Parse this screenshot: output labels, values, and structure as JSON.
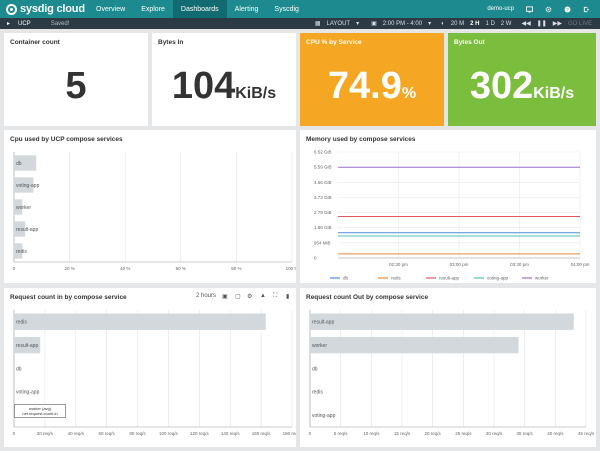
{
  "nav": {
    "brand": "sysdig cloud",
    "items": [
      "Overview",
      "Explore",
      "Dashboards",
      "Alerting",
      "Syscdig"
    ],
    "active": "Dashboards",
    "user": "demo-ucp"
  },
  "subbar": {
    "dashboard": "UCP",
    "status": "Saved!",
    "layout": "LAYOUT",
    "time": "2:00 PM - 4:00",
    "ranges": [
      "20 M",
      "2 H",
      "1 D",
      "2 W"
    ],
    "active_range": "2 H",
    "golive": "GO LIVE"
  },
  "panels": {
    "container": {
      "title": "Container count",
      "value": "5",
      "unit": ""
    },
    "bytes_in": {
      "title": "Bytes In",
      "value": "104",
      "unit": "KiB/s"
    },
    "cpu": {
      "title": "CPU % by Service",
      "value": "74.9",
      "unit": "%",
      "color": "#f5a623"
    },
    "bytes_out": {
      "title": "Bytes Out",
      "value": "302",
      "unit": "KiB/s",
      "color": "#7bbd3c"
    },
    "cpu_chart": {
      "title": "Cpu used by UCP compose services"
    },
    "mem_chart": {
      "title": "Memory used by compose services"
    },
    "req_in": {
      "title": "Request count in by compose service",
      "range": "2 hours",
      "tooltip": {
        "series": "worker (avg)",
        "metric": "net.request.count.in"
      }
    },
    "req_out": {
      "title": "Request count Out by compose service"
    }
  },
  "chart_data": [
    {
      "type": "bar",
      "title": "Cpu used by UCP compose services",
      "categories": [
        "db",
        "voting-app",
        "worker",
        "result-app",
        "redis"
      ],
      "values": [
        8,
        7,
        3,
        4,
        3
      ],
      "xticks": [
        "0",
        "20 %",
        "40 %",
        "60 %",
        "80 %",
        "100 %"
      ],
      "xlim": [
        0,
        100
      ],
      "color": "#d2d8dc"
    },
    {
      "type": "line",
      "title": "Memory used by compose services",
      "yticks": [
        "6.52 GiB",
        "5.59 GiB",
        "4.66 GiB",
        "3.73 GiB",
        "2.79 GiB",
        "1.86 GiB",
        "954 MiB",
        "0"
      ],
      "xticks": [
        "02:30 pm",
        "03:00 pm",
        "03:30 pm",
        "04:00 pm"
      ],
      "ylim": [
        0,
        6.52
      ],
      "series": [
        {
          "name": "db",
          "values": [
            1.55,
            1.55
          ],
          "color": "#4e8fd6"
        },
        {
          "name": "redis",
          "values": [
            0.25,
            0.25
          ],
          "color": "#e8883a"
        },
        {
          "name": "result-app",
          "values": [
            2.55,
            2.55
          ],
          "color": "#e05a5a"
        },
        {
          "name": "voting-app",
          "values": [
            1.35,
            1.35
          ],
          "color": "#5bbfa5"
        },
        {
          "name": "worker",
          "values": [
            5.58,
            5.58
          ],
          "color": "#9b6fcf"
        }
      ],
      "legend": "bottom"
    },
    {
      "type": "bar",
      "title": "Request count in by compose service",
      "categories": [
        "redis",
        "result-app",
        "db",
        "voting-app",
        "worker"
      ],
      "values": [
        163,
        17,
        0,
        0,
        0
      ],
      "xticks": [
        "0",
        "20 req/s",
        "40 req/s",
        "60 req/s",
        "80 req/s",
        "100 req/s",
        "120 req/s",
        "140 req/s",
        "160 req/s",
        "180 req/s"
      ],
      "xlim": [
        0,
        180
      ],
      "color": "#d2d8dc"
    },
    {
      "type": "bar",
      "title": "Request count Out by compose service",
      "categories": [
        "result-app",
        "worker",
        "db",
        "redis",
        "voting-app"
      ],
      "values": [
        43,
        34,
        0,
        0,
        0
      ],
      "xticks": [
        "0",
        "5 req/s",
        "10 req/s",
        "15 req/s",
        "20 req/s",
        "25 req/s",
        "30 req/s",
        "35 req/s",
        "40 req/s",
        "45 req/s"
      ],
      "xlim": [
        0,
        45
      ],
      "color": "#d2d8dc"
    }
  ]
}
